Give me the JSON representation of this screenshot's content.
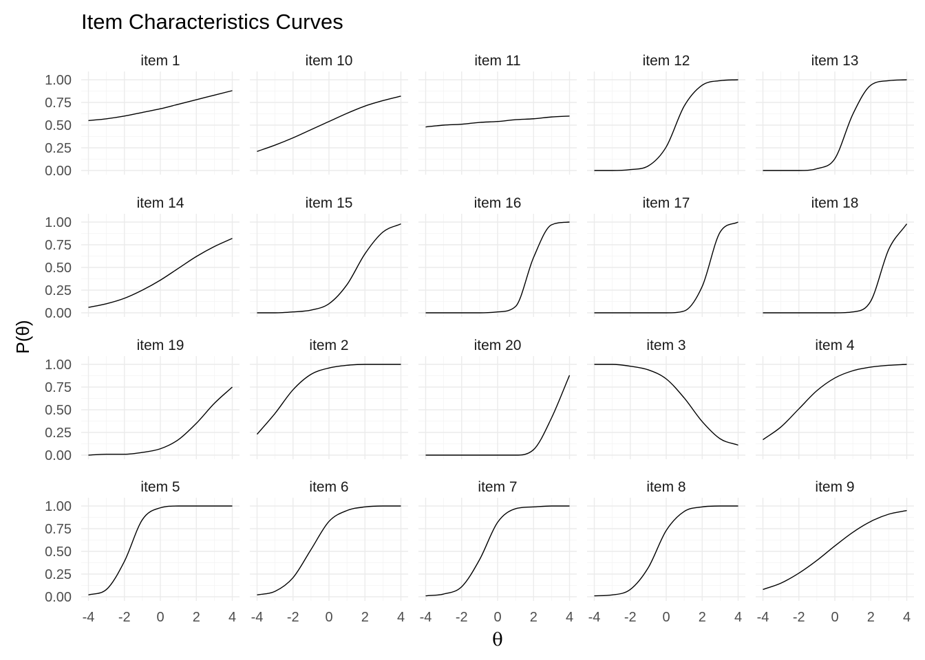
{
  "chart_data": {
    "type": "line",
    "layout": "facet-grid",
    "title": "Item Characteristics Curves",
    "xlabel": "θ",
    "ylabel": "P(θ)",
    "xlim": [
      -4,
      4
    ],
    "ylim": [
      0,
      1
    ],
    "x_ticks": [
      -4,
      -2,
      0,
      2,
      4
    ],
    "x_tick_labels": [
      "-4",
      "-2",
      "0",
      "2",
      "4"
    ],
    "y_ticks": [
      0,
      0.25,
      0.5,
      0.75,
      1
    ],
    "y_tick_labels": [
      "0.00",
      "0.25",
      "0.50",
      "0.75",
      "1.00"
    ],
    "grid": true,
    "theme": "minimal",
    "line_color": "#000000",
    "x": [
      -4,
      -3,
      -2,
      -1,
      0,
      1,
      2,
      3,
      4
    ],
    "facets": [
      {
        "label": "item 1",
        "values": [
          0.55,
          0.57,
          0.6,
          0.64,
          0.68,
          0.73,
          0.78,
          0.83,
          0.88
        ]
      },
      {
        "label": "item 10",
        "values": [
          0.21,
          0.28,
          0.36,
          0.45,
          0.54,
          0.63,
          0.71,
          0.77,
          0.82
        ]
      },
      {
        "label": "item 11",
        "values": [
          0.48,
          0.5,
          0.51,
          0.53,
          0.54,
          0.56,
          0.57,
          0.59,
          0.6
        ]
      },
      {
        "label": "item 12",
        "values": [
          0.0,
          0.0,
          0.01,
          0.05,
          0.26,
          0.71,
          0.94,
          0.99,
          1.0
        ]
      },
      {
        "label": "item 13",
        "values": [
          0.0,
          0.0,
          0.0,
          0.02,
          0.13,
          0.62,
          0.94,
          0.99,
          1.0
        ]
      },
      {
        "label": "item 14",
        "values": [
          0.06,
          0.1,
          0.16,
          0.25,
          0.36,
          0.49,
          0.62,
          0.73,
          0.82
        ]
      },
      {
        "label": "item 15",
        "values": [
          0.0,
          0.0,
          0.01,
          0.03,
          0.1,
          0.31,
          0.65,
          0.89,
          0.98
        ]
      },
      {
        "label": "item 16",
        "values": [
          0.0,
          0.0,
          0.0,
          0.0,
          0.01,
          0.07,
          0.61,
          0.97,
          1.0
        ]
      },
      {
        "label": "item 17",
        "values": [
          0.0,
          0.0,
          0.0,
          0.0,
          0.0,
          0.02,
          0.29,
          0.89,
          1.0
        ]
      },
      {
        "label": "item 18",
        "values": [
          0.0,
          0.0,
          0.0,
          0.0,
          0.0,
          0.01,
          0.13,
          0.7,
          0.98
        ]
      },
      {
        "label": "item 19",
        "values": [
          0.0,
          0.01,
          0.01,
          0.03,
          0.07,
          0.17,
          0.35,
          0.57,
          0.75
        ]
      },
      {
        "label": "item 2",
        "values": [
          0.23,
          0.46,
          0.72,
          0.89,
          0.96,
          0.99,
          1.0,
          1.0,
          1.0
        ]
      },
      {
        "label": "item 20",
        "values": [
          0.0,
          0.0,
          0.0,
          0.0,
          0.0,
          0.0,
          0.06,
          0.41,
          0.88
        ]
      },
      {
        "label": "item 3",
        "values": [
          1.0,
          1.0,
          0.98,
          0.94,
          0.84,
          0.63,
          0.37,
          0.18,
          0.11
        ]
      },
      {
        "label": "item 4",
        "values": [
          0.17,
          0.31,
          0.51,
          0.71,
          0.85,
          0.93,
          0.97,
          0.99,
          1.0
        ]
      },
      {
        "label": "item 5",
        "values": [
          0.02,
          0.08,
          0.39,
          0.85,
          0.98,
          1.0,
          1.0,
          1.0,
          1.0
        ]
      },
      {
        "label": "item 6",
        "values": [
          0.02,
          0.06,
          0.21,
          0.52,
          0.83,
          0.95,
          0.99,
          1.0,
          1.0
        ]
      },
      {
        "label": "item 7",
        "values": [
          0.01,
          0.03,
          0.11,
          0.41,
          0.82,
          0.97,
          0.99,
          1.0,
          1.0
        ]
      },
      {
        "label": "item 8",
        "values": [
          0.01,
          0.02,
          0.08,
          0.32,
          0.73,
          0.94,
          0.99,
          1.0,
          1.0
        ]
      },
      {
        "label": "item 9",
        "values": [
          0.08,
          0.15,
          0.26,
          0.4,
          0.56,
          0.71,
          0.83,
          0.91,
          0.95
        ]
      }
    ]
  }
}
